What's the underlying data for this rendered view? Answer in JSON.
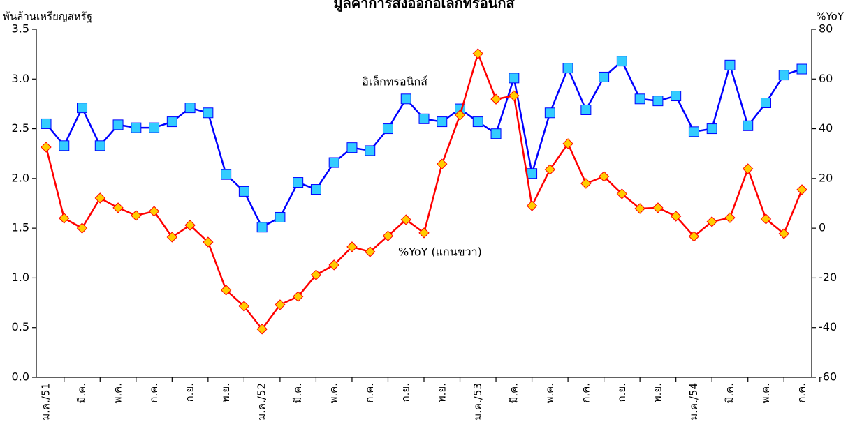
{
  "chart_data": {
    "type": "line",
    "title": "มูลค่าการส่งออกอิเล็กทรอนิกส์",
    "y_label": "พันล้านเหรียญสหรัฐ",
    "y2_label": "%YoY",
    "categories": [
      "ม.ค./51",
      null,
      "มี.ค.",
      null,
      "พ.ค.",
      null,
      "ก.ค.",
      null,
      "ก.ย.",
      null,
      "พ.ย.",
      null,
      "ม.ค./52",
      null,
      "มี.ค.",
      null,
      "พ.ค.",
      null,
      "ก.ค.",
      null,
      "ก.ย.",
      null,
      "พ.ย.",
      null,
      "ม.ค./53",
      null,
      "มี.ค.",
      null,
      "พ.ค.",
      null,
      "ก.ค.",
      null,
      "ก.ย.",
      null,
      "พ.ย.",
      null,
      "ม.ค./54",
      null,
      "มี.ค.",
      null,
      "พ.ค.",
      null,
      "ก.ค."
    ],
    "series": [
      {
        "name": "อิเล็กทรอนิกส์",
        "color": "#0000ff",
        "marker_color": "#33ccff",
        "marker": "square",
        "values": [
          2.55,
          2.33,
          2.71,
          2.33,
          2.54,
          2.51,
          2.51,
          2.57,
          2.71,
          2.66,
          2.04,
          1.87,
          1.51,
          1.61,
          1.96,
          1.89,
          2.16,
          2.31,
          2.28,
          2.5,
          2.8,
          2.6,
          2.57,
          2.7,
          2.57,
          2.45,
          3.01,
          2.05,
          2.66,
          3.11,
          2.69,
          3.02,
          3.18,
          2.8,
          2.78,
          2.83,
          2.47,
          2.5,
          3.14,
          2.53,
          2.76,
          3.04,
          3.1
        ]
      },
      {
        "name": "%YoY (แกนขวา)",
        "color": "#ff0000",
        "marker_color": "#ffcc00",
        "marker": "diamond",
        "axis": "y2",
        "values": [
          32.6,
          4.0,
          0,
          12.1,
          8.2,
          5.1,
          6.8,
          -3.6,
          1.2,
          -5.6,
          -24.9,
          -31.4,
          -40.6,
          -30.8,
          -27.5,
          -18.8,
          -14.8,
          -7.5,
          -9.5,
          -3.1,
          3.4,
          -1.9,
          25.8,
          45.5,
          70.2,
          51.9,
          53.3,
          9.0,
          23.6,
          34.0,
          18.0,
          20.8,
          13.8,
          7.9,
          8.2,
          4.8,
          -3.3,
          2.6,
          4.2,
          23.9,
          3.7,
          -2.2,
          15.5
        ]
      }
    ],
    "ylim": [
      0,
      3.5
    ],
    "yticks": [
      {
        "value": 0,
        "label": "0.0"
      },
      0.5,
      {
        "value": 1,
        "label": "1.0"
      },
      1.5,
      {
        "value": 2,
        "label": "2.0"
      },
      2.5,
      {
        "value": 3,
        "label": "3.0"
      },
      3.5
    ],
    "y2lim": [
      -60,
      80
    ],
    "y2ticks": [
      -60,
      -40,
      -20,
      0,
      20,
      40,
      60,
      80
    ],
    "grid": false
  }
}
